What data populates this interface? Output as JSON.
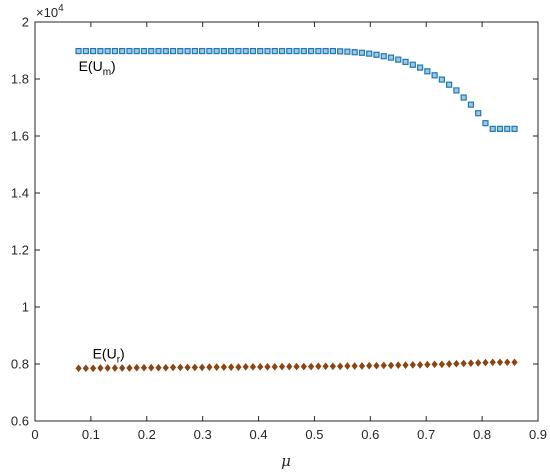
{
  "chart_data": {
    "type": "scatter",
    "xlabel": "μ",
    "ylabel": "",
    "xlim": [
      0,
      0.9
    ],
    "ylim": [
      0.6,
      2.0
    ],
    "y_multiplier_label": "×10",
    "y_multiplier_exponent": "4",
    "x_ticks": [
      "0",
      "0.1",
      "0.2",
      "0.3",
      "0.4",
      "0.5",
      "0.6",
      "0.7",
      "0.8",
      "0.9"
    ],
    "y_ticks": [
      "0.6",
      "0.8",
      "1",
      "1.2",
      "1.4",
      "1.6",
      "1.8",
      "2"
    ],
    "grid": false,
    "x": [
      0.078,
      0.091,
      0.104,
      0.117,
      0.13,
      0.143,
      0.156,
      0.169,
      0.182,
      0.195,
      0.208,
      0.221,
      0.234,
      0.247,
      0.26,
      0.273,
      0.286,
      0.299,
      0.312,
      0.325,
      0.338,
      0.351,
      0.364,
      0.377,
      0.39,
      0.403,
      0.416,
      0.429,
      0.442,
      0.455,
      0.468,
      0.481,
      0.494,
      0.507,
      0.52,
      0.533,
      0.546,
      0.559,
      0.572,
      0.585,
      0.598,
      0.611,
      0.624,
      0.637,
      0.65,
      0.663,
      0.676,
      0.689,
      0.702,
      0.715,
      0.728,
      0.741,
      0.754,
      0.767,
      0.78,
      0.793,
      0.806,
      0.819,
      0.832,
      0.845,
      0.858
    ],
    "series": [
      {
        "name": "E(U_m)",
        "label_main": "E(U",
        "label_sub": "m",
        "label_close": ")",
        "color": "#1f77b4",
        "marker": "square",
        "values": [
          1.898,
          1.898,
          1.898,
          1.898,
          1.898,
          1.898,
          1.898,
          1.898,
          1.898,
          1.898,
          1.898,
          1.898,
          1.898,
          1.898,
          1.898,
          1.898,
          1.898,
          1.898,
          1.898,
          1.898,
          1.898,
          1.898,
          1.898,
          1.898,
          1.898,
          1.898,
          1.898,
          1.898,
          1.898,
          1.898,
          1.898,
          1.898,
          1.898,
          1.898,
          1.898,
          1.898,
          1.897,
          1.896,
          1.894,
          1.892,
          1.889,
          1.885,
          1.88,
          1.875,
          1.868,
          1.86,
          1.85,
          1.84,
          1.827,
          1.813,
          1.798,
          1.78,
          1.76,
          1.735,
          1.71,
          1.68,
          1.645,
          1.625,
          1.625,
          1.625,
          1.625
        ]
      },
      {
        "name": "E(U_r)",
        "label_main": "E(U",
        "label_sub": "r",
        "label_close": ")",
        "color": "#8b4513",
        "marker": "diamond",
        "values": [
          0.785,
          0.785,
          0.785,
          0.786,
          0.786,
          0.786,
          0.786,
          0.786,
          0.787,
          0.787,
          0.787,
          0.787,
          0.787,
          0.788,
          0.788,
          0.788,
          0.788,
          0.788,
          0.789,
          0.789,
          0.789,
          0.789,
          0.789,
          0.79,
          0.79,
          0.79,
          0.79,
          0.79,
          0.791,
          0.791,
          0.791,
          0.791,
          0.791,
          0.792,
          0.792,
          0.792,
          0.792,
          0.793,
          0.793,
          0.793,
          0.794,
          0.794,
          0.795,
          0.795,
          0.796,
          0.796,
          0.797,
          0.797,
          0.798,
          0.799,
          0.799,
          0.8,
          0.801,
          0.802,
          0.803,
          0.804,
          0.805,
          0.806,
          0.806,
          0.806,
          0.806
        ]
      }
    ]
  }
}
